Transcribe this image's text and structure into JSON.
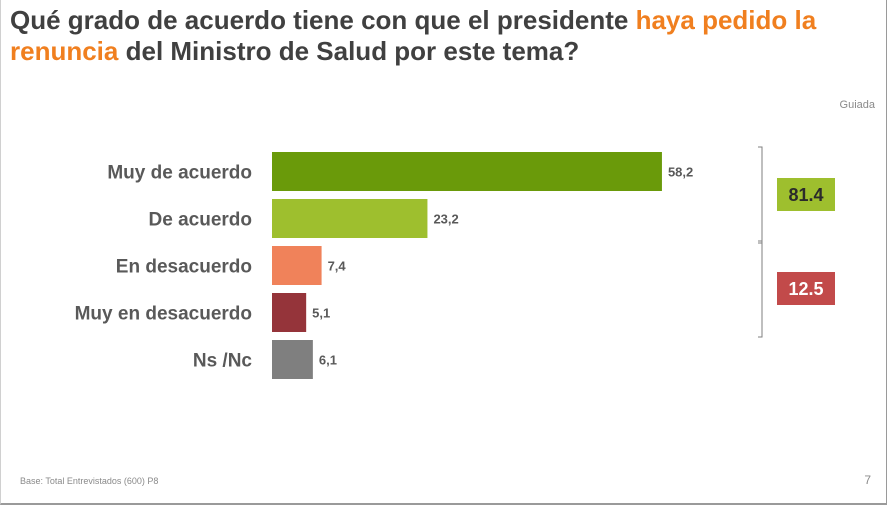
{
  "title": {
    "part1": "Qué grado de acuerdo tiene con que el presidente ",
    "highlight": "haya pedido la renuncia",
    "part2": " del Ministro de Salud por este tema?",
    "highlight_color": "#f07f1f"
  },
  "subtitle": "Guiada",
  "footer": "Base: Total Entrevistados (600) P8",
  "page_number": "7",
  "chart_data": {
    "type": "bar",
    "orientation": "horizontal",
    "categories": [
      "Muy de acuerdo",
      "De acuerdo",
      "En desacuerdo",
      "Muy en desacuerdo",
      "Ns /Nc"
    ],
    "values": [
      58.2,
      23.2,
      7.4,
      5.1,
      6.1
    ],
    "value_labels": [
      "58,2",
      "23,2",
      "7,4",
      "5,1",
      "6,1"
    ],
    "colors": [
      "#6a9a0a",
      "#9ebf2e",
      "#f0825a",
      "#95343a",
      "#7f7f7f"
    ],
    "xlim": [
      0,
      100
    ],
    "grid": false,
    "summary_groups": [
      {
        "label": "81.4",
        "value": 81.4,
        "color": "#9ebf2e",
        "text_color": "#2b2b2b",
        "range": [
          0,
          1
        ]
      },
      {
        "label": "12.5",
        "value": 12.5,
        "color": "#c24a4a",
        "text_color": "#ffffff",
        "range": [
          2,
          3
        ]
      }
    ]
  }
}
